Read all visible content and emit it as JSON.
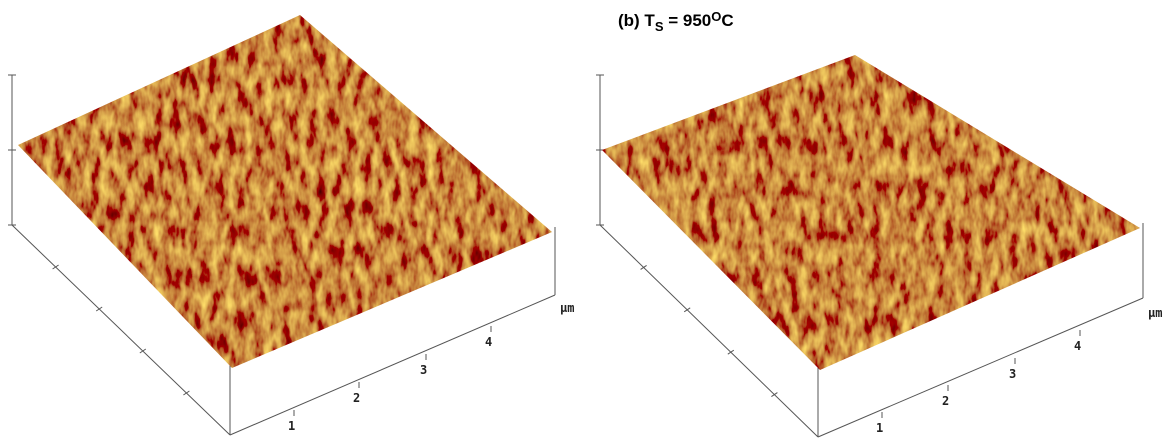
{
  "figure": {
    "title": {
      "prefix": "(b) T",
      "subscript": "S",
      "middle": " = 950",
      "superscript": "O",
      "suffix": "C"
    },
    "panels": [
      {
        "x_tick_labels": [
          "1",
          "2",
          "3",
          "4"
        ],
        "unit": "µm"
      },
      {
        "x_tick_labels": [
          "1",
          "2",
          "3",
          "4"
        ],
        "unit": "µm"
      }
    ]
  }
}
